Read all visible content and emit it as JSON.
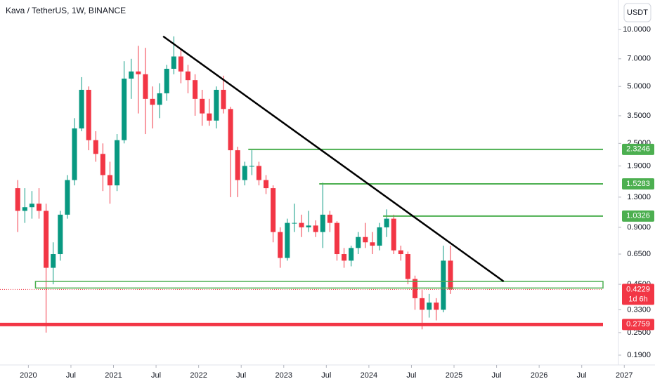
{
  "chart_data": {
    "type": "candlestick",
    "title": "Kava / TetherUS, 1W, BINANCE",
    "currency": "USDT",
    "countdown": "1d 6h",
    "log_scale": true,
    "up_color": "#089981",
    "down_color": "#f23645",
    "x": [
      "2019-11",
      "2019-12",
      "2020-01",
      "2020-02",
      "2020-03",
      "2020-04",
      "2020-05",
      "2020-06",
      "2020-07",
      "2020-08",
      "2020-09",
      "2020-10",
      "2020-11",
      "2020-12",
      "2021-01",
      "2021-02",
      "2021-03",
      "2021-04",
      "2021-05",
      "2021-06",
      "2021-07",
      "2021-08",
      "2021-09",
      "2021-10",
      "2021-11",
      "2021-12",
      "2022-01",
      "2022-02",
      "2022-03",
      "2022-04",
      "2022-05",
      "2022-06",
      "2022-07",
      "2022-08",
      "2022-09",
      "2022-10",
      "2022-11",
      "2022-12",
      "2023-01",
      "2023-02",
      "2023-03",
      "2023-04",
      "2023-05",
      "2023-06",
      "2023-07",
      "2023-08",
      "2023-09",
      "2023-10",
      "2023-11",
      "2023-12",
      "2024-01",
      "2024-02",
      "2024-03",
      "2024-04",
      "2024-05",
      "2024-06",
      "2024-07",
      "2024-08",
      "2024-09",
      "2024-10",
      "2024-11",
      "2024-12"
    ],
    "open": [
      1.45,
      1.1,
      1.15,
      1.2,
      1.1,
      0.55,
      0.65,
      1.05,
      1.6,
      3.0,
      4.8,
      2.6,
      2.2,
      1.7,
      1.5,
      2.6,
      5.5,
      6.0,
      5.8,
      4.3,
      4.0,
      4.6,
      6.2,
      7.2,
      6.0,
      5.4,
      4.3,
      3.6,
      3.3,
      4.8,
      3.8,
      2.3,
      1.6,
      1.9,
      1.9,
      1.6,
      1.45,
      0.85,
      0.62,
      0.95,
      0.95,
      0.9,
      0.92,
      0.85,
      1.05,
      0.95,
      0.65,
      0.6,
      0.7,
      0.8,
      0.75,
      0.72,
      0.9,
      1.0,
      0.68,
      0.65,
      0.48,
      0.38,
      0.33,
      0.36,
      0.33,
      0.6
    ],
    "high": [
      1.6,
      1.45,
      1.4,
      1.45,
      1.2,
      0.75,
      1.1,
      1.7,
      3.4,
      5.6,
      5.0,
      2.9,
      2.5,
      2.0,
      2.8,
      6.8,
      7.0,
      8.2,
      8.0,
      5.0,
      5.2,
      6.5,
      9.2,
      7.8,
      6.5,
      5.8,
      4.8,
      4.3,
      5.0,
      5.7,
      3.9,
      2.4,
      2.0,
      2.3,
      2.0,
      1.7,
      1.5,
      0.9,
      1.0,
      1.2,
      1.05,
      1.1,
      0.98,
      1.55,
      1.1,
      0.97,
      0.7,
      0.72,
      0.85,
      0.95,
      0.85,
      0.95,
      1.12,
      1.05,
      0.72,
      0.67,
      0.5,
      0.42,
      0.4,
      0.38,
      0.72,
      0.72
    ],
    "low": [
      0.85,
      0.95,
      1.0,
      1.0,
      0.25,
      0.45,
      0.6,
      1.0,
      1.5,
      2.9,
      2.3,
      2.0,
      1.4,
      1.2,
      1.4,
      2.5,
      4.3,
      3.6,
      2.8,
      3.0,
      3.4,
      4.2,
      5.8,
      5.2,
      4.6,
      3.5,
      3.1,
      3.1,
      3.0,
      3.6,
      1.3,
      1.3,
      1.5,
      1.7,
      1.5,
      1.35,
      0.75,
      0.55,
      0.6,
      0.85,
      0.8,
      0.85,
      0.8,
      0.7,
      0.85,
      0.6,
      0.55,
      0.56,
      0.65,
      0.7,
      0.65,
      0.68,
      0.8,
      0.65,
      0.6,
      0.45,
      0.33,
      0.26,
      0.3,
      0.29,
      0.32,
      0.4
    ],
    "close": [
      1.1,
      1.15,
      1.2,
      1.1,
      0.55,
      0.65,
      1.05,
      1.6,
      3.0,
      4.8,
      2.6,
      2.2,
      1.7,
      1.5,
      2.6,
      5.5,
      6.0,
      5.8,
      4.3,
      4.0,
      4.6,
      6.2,
      7.2,
      6.0,
      5.4,
      4.3,
      3.6,
      3.3,
      4.8,
      3.8,
      2.3,
      1.6,
      1.9,
      1.9,
      1.6,
      1.45,
      0.85,
      0.62,
      0.95,
      0.95,
      0.9,
      0.92,
      0.85,
      1.05,
      0.95,
      0.65,
      0.6,
      0.7,
      0.8,
      0.75,
      0.72,
      0.9,
      1.0,
      0.68,
      0.65,
      0.48,
      0.38,
      0.33,
      0.36,
      0.33,
      0.6,
      0.4229
    ],
    "xlim": [
      "2019-09",
      "2026-10"
    ],
    "xticks": [
      {
        "value": "2020-01",
        "label": "2020"
      },
      {
        "value": "2020-07",
        "label": "Jul"
      },
      {
        "value": "2021-01",
        "label": "2021"
      },
      {
        "value": "2021-07",
        "label": "Jul"
      },
      {
        "value": "2022-01",
        "label": "2022"
      },
      {
        "value": "2022-07",
        "label": "Jul"
      },
      {
        "value": "2023-01",
        "label": "2023"
      },
      {
        "value": "2023-07",
        "label": "Jul"
      },
      {
        "value": "2024-01",
        "label": "2024"
      },
      {
        "value": "2024-07",
        "label": "Jul"
      },
      {
        "value": "2025-01",
        "label": "2025"
      },
      {
        "value": "2025-07",
        "label": "Jul"
      },
      {
        "value": "2026-01",
        "label": "2026"
      },
      {
        "value": "2026-07",
        "label": "Jul"
      },
      {
        "value": "2027-01",
        "label": "2027"
      }
    ],
    "ylim": [
      0.1686,
      14.32
    ],
    "yticks": [
      {
        "value": 10,
        "label": "10.0000"
      },
      {
        "value": 7,
        "label": "7.0000"
      },
      {
        "value": 5,
        "label": "5.0000"
      },
      {
        "value": 3.5,
        "label": "3.5000"
      },
      {
        "value": 2.5,
        "label": "2.5000"
      },
      {
        "value": 1.9,
        "label": "1.9000"
      },
      {
        "value": 1.3,
        "label": "1.3000"
      },
      {
        "value": 0.9,
        "label": "0.9000"
      },
      {
        "value": 0.65,
        "label": "0.6500"
      },
      {
        "value": 0.45,
        "label": "0.4500"
      },
      {
        "value": 0.33,
        "label": "0.3300"
      },
      {
        "value": 0.25,
        "label": "0.2500"
      },
      {
        "value": 0.19,
        "label": "0.1900"
      }
    ],
    "trend_line": {
      "color": "#000000",
      "points": [
        {
          "x": "2021-08",
          "y": 9.2
        },
        {
          "x": "2025-08",
          "y": 0.466
        }
      ]
    },
    "levels": [
      {
        "value": 2.3246,
        "start": "2022-08",
        "color": "#4caf50"
      },
      {
        "value": 1.5283,
        "start": "2023-06",
        "color": "#4caf50"
      },
      {
        "value": 1.0326,
        "start": "2024-03",
        "color": "#4caf50"
      },
      {
        "value": 0.2759,
        "start": "2019-09",
        "color": "#f23645"
      }
    ],
    "zone": {
      "low": 0.43,
      "high": 0.466,
      "start": "2020-02",
      "color": "#4caf50"
    }
  }
}
